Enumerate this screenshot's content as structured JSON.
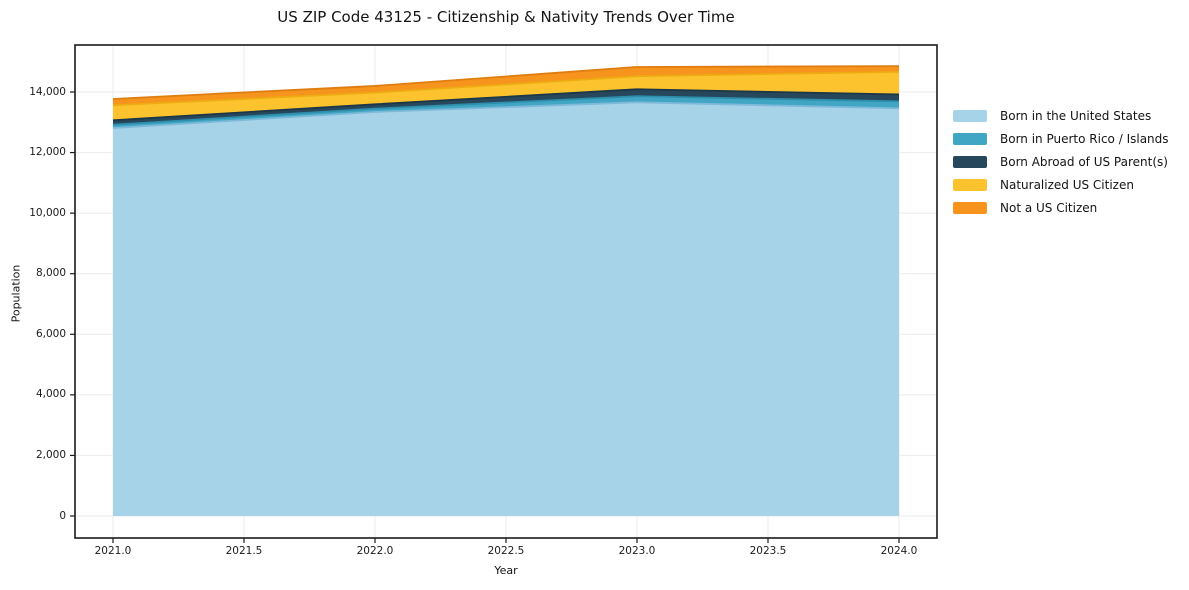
{
  "title": "US ZIP Code 43125 - Citizenship & Nativity Trends Over Time",
  "chart_data": {
    "type": "area",
    "stacked": true,
    "title": "US ZIP Code 43125 - Citizenship & Nativity Trends Over Time",
    "xlabel": "Year",
    "ylabel": "Population",
    "x": [
      2021,
      2022,
      2023,
      2024
    ],
    "series": [
      {
        "name": "Born in the United States",
        "color": "#A6D3E8",
        "edge_color": "#7EB9D9",
        "values": [
          12810,
          13340,
          13660,
          13460
        ]
      },
      {
        "name": "Born in Puerto Rico / Islands",
        "color": "#41A6C4",
        "edge_color": "#2E8FAD",
        "values": [
          110,
          110,
          200,
          230
        ]
      },
      {
        "name": "Born Abroad of US Parent(s)",
        "color": "#27485C",
        "edge_color": "#1C3747",
        "values": [
          145,
          145,
          230,
          230
        ]
      },
      {
        "name": "Naturalized US Citizen",
        "color": "#FDC32E",
        "edge_color": "#EDAC12",
        "values": [
          495,
          385,
          430,
          745
        ]
      },
      {
        "name": "Not a US Citizen",
        "color": "#F7941E",
        "edge_color": "#E07D10",
        "values": [
          210,
          220,
          305,
          190
        ]
      }
    ],
    "stack_totals": [
      13770,
      14200,
      14825,
      14855
    ],
    "xticks": [
      2021.0,
      2021.5,
      2022.0,
      2022.5,
      2023.0,
      2023.5,
      2024.0
    ],
    "xtick_labels": [
      "2021.0",
      "2021.5",
      "2022.0",
      "2022.5",
      "2023.0",
      "2023.5",
      "2024.0"
    ],
    "yticks": [
      0,
      2000,
      4000,
      6000,
      8000,
      10000,
      12000,
      14000
    ],
    "ytick_labels": [
      "0",
      "2,000",
      "4,000",
      "6,000",
      "8,000",
      "10,000",
      "12,000",
      "14,000"
    ],
    "xlim": [
      2020.855,
      2024.145
    ],
    "ylim": [
      -730,
      15560
    ],
    "grid": true,
    "gridline_color": "#ebebeb",
    "frame_color": "#1a1a1a",
    "legend_position": "right-of-plot"
  }
}
